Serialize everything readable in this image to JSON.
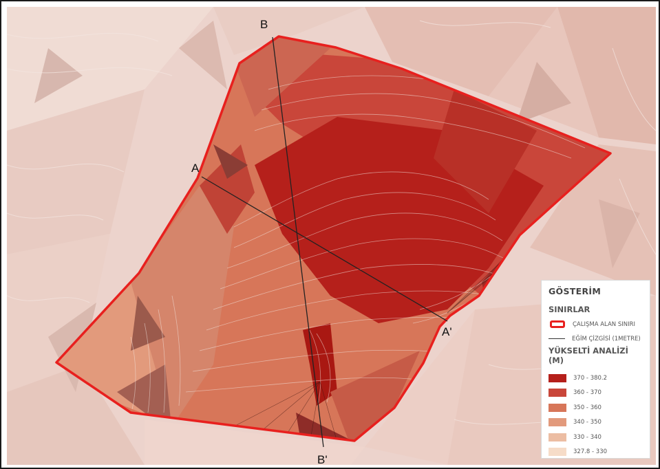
{
  "section_lines": [
    {
      "start": "A",
      "end": "A'"
    },
    {
      "start": "B",
      "end": "B'"
    }
  ],
  "legend": {
    "title": "GÖSTERİM",
    "boundaries_title": "SINIRLAR",
    "boundary_label": "ÇALIŞMA ALAN SINIRI",
    "slope_line_label": "EĞİM ÇİZGİSİ (1METRE)",
    "elevation_title": "YÜKSELTİ ANALİZİ (M)",
    "elevation_classes": [
      {
        "label": "370 - 380.2",
        "color": "#b5201b"
      },
      {
        "label": "360 - 370",
        "color": "#c9463a"
      },
      {
        "label": "350 - 360",
        "color": "#d77659"
      },
      {
        "label": "340 - 350",
        "color": "#e29a7c"
      },
      {
        "label": "330 - 340",
        "color": "#ecbda3"
      },
      {
        "label": "327.8 - 330",
        "color": "#f6dcc8"
      }
    ]
  },
  "colors": {
    "boundary": "#e8201e",
    "section_line": "#222222",
    "contour": "#f3e7e2",
    "background": "#ecd3cc"
  }
}
